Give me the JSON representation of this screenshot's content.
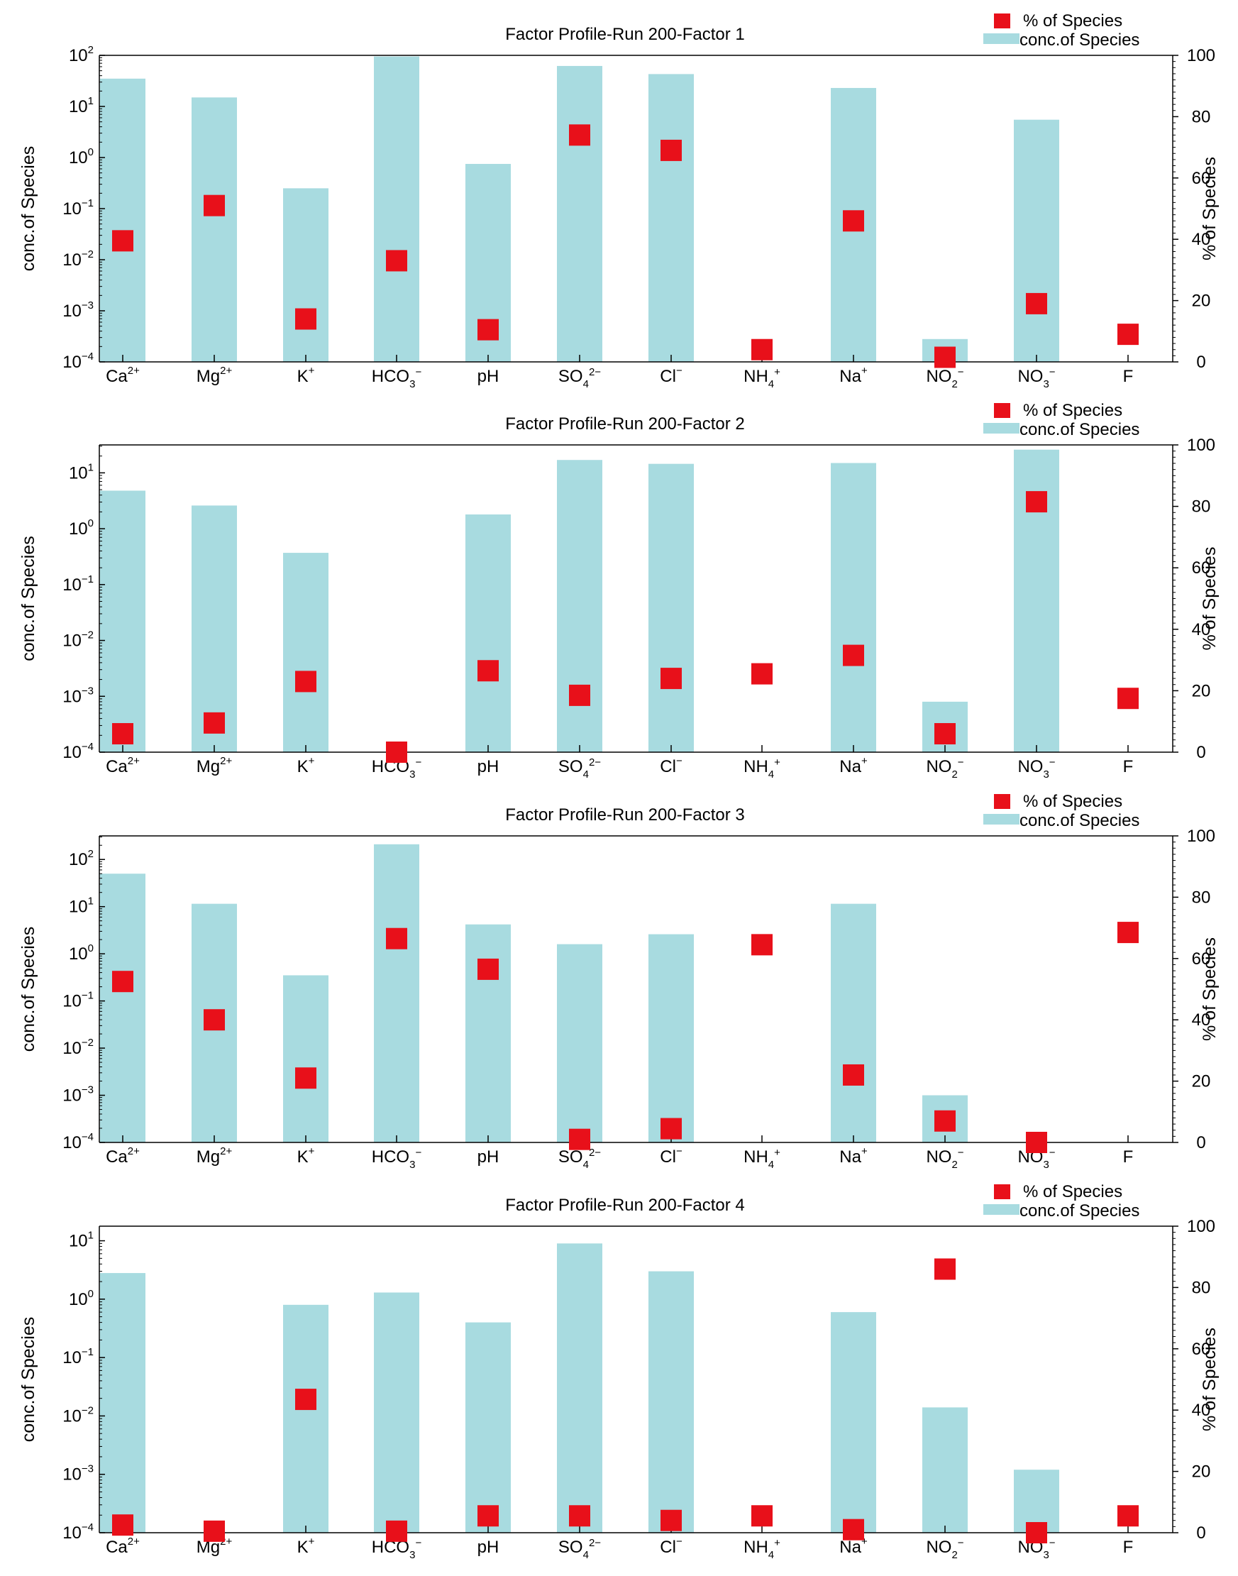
{
  "colors": {
    "bar": "#a8dbe0",
    "marker": "#e8101a",
    "axis": "#000000",
    "background": "#ffffff"
  },
  "legend": {
    "marker_label": "% of Species",
    "bar_label": "conc.of Species"
  },
  "categories": [
    {
      "base": "Ca",
      "sup": "2+",
      "sub": "",
      "sup2": ""
    },
    {
      "base": "Mg",
      "sup": "2+",
      "sub": "",
      "sup2": ""
    },
    {
      "base": "K",
      "sup": "+",
      "sub": "",
      "sup2": ""
    },
    {
      "base": "HCO",
      "sup": "",
      "sub": "3",
      "sup2": "−"
    },
    {
      "base": "pH",
      "sup": "",
      "sub": "",
      "sup2": ""
    },
    {
      "base": "SO",
      "sup": "",
      "sub": "4",
      "sup2": "2−"
    },
    {
      "base": "Cl",
      "sup": "−",
      "sub": "",
      "sup2": ""
    },
    {
      "base": "NH",
      "sup": "",
      "sub": "4",
      "sup2": "+"
    },
    {
      "base": "Na",
      "sup": "+",
      "sub": "",
      "sup2": ""
    },
    {
      "base": "NO",
      "sup": "",
      "sub": "2",
      "sup2": "−"
    },
    {
      "base": "NO",
      "sup": "",
      "sub": "3",
      "sup2": "−"
    },
    {
      "base": "F",
      "sup": "",
      "sub": "",
      "sup2": ""
    }
  ],
  "chart_data": [
    {
      "type": "bar",
      "title": "Factor Profile-Run 200-Factor 1",
      "ylabel": "conc.of Species",
      "y2label": "% of Species",
      "yscale": "log",
      "ylim_exp": [
        -4,
        2
      ],
      "y2lim": [
        0,
        100
      ],
      "y2ticks": [
        0,
        20,
        40,
        60,
        80,
        100
      ],
      "series": [
        {
          "name": "conc.of Species",
          "kind": "bar",
          "values": [
            35,
            15,
            0.25,
            95,
            0.75,
            62,
            43,
            0,
            23,
            0.00028,
            5.5,
            0
          ]
        },
        {
          "name": "% of Species",
          "kind": "marker",
          "values": [
            39.5,
            51,
            14,
            33,
            10.5,
            74,
            69,
            4,
            46,
            1.5,
            19,
            9
          ]
        }
      ]
    },
    {
      "type": "bar",
      "title": "Factor Profile-Run 200-Factor 2",
      "ylabel": "conc.of Species",
      "y2label": "% of Species",
      "yscale": "log",
      "ylim_exp": [
        -4,
        1.5
      ],
      "y2lim": [
        0,
        100
      ],
      "y2ticks": [
        0,
        20,
        40,
        60,
        80,
        100
      ],
      "series": [
        {
          "name": "conc.of Species",
          "kind": "bar",
          "values": [
            4.8,
            2.6,
            0.37,
            0,
            1.8,
            17,
            14.5,
            0,
            15,
            0.0008,
            26,
            0
          ]
        },
        {
          "name": "% of Species",
          "kind": "marker",
          "values": [
            6,
            9.5,
            23,
            0,
            26.5,
            18.5,
            24,
            25.5,
            31.5,
            6,
            81.5,
            17.5
          ]
        }
      ]
    },
    {
      "type": "bar",
      "title": "Factor Profile-Run 200-Factor 3",
      "ylabel": "conc.of Species",
      "y2label": "% of Species",
      "yscale": "log",
      "ylim_exp": [
        -4,
        2.5
      ],
      "y2lim": [
        0,
        100
      ],
      "y2ticks": [
        0,
        20,
        40,
        60,
        80,
        100
      ],
      "series": [
        {
          "name": "conc.of Species",
          "kind": "bar",
          "values": [
            50,
            11.5,
            0.35,
            210,
            4.2,
            1.6,
            2.6,
            0,
            11.5,
            0.001,
            0,
            0
          ]
        },
        {
          "name": "% of Species",
          "kind": "marker",
          "values": [
            52.5,
            40,
            21,
            66.5,
            56.5,
            1,
            4.5,
            64.5,
            22,
            7,
            0,
            68.5
          ]
        }
      ]
    },
    {
      "type": "bar",
      "title": "Factor Profile-Run 200-Factor 4",
      "ylabel": "conc.of Species",
      "y2label": "% of Species",
      "yscale": "log",
      "ylim_exp": [
        -4,
        1.25
      ],
      "y2lim": [
        0,
        100
      ],
      "y2ticks": [
        0,
        20,
        40,
        60,
        80,
        100
      ],
      "series": [
        {
          "name": "conc.of Species",
          "kind": "bar",
          "values": [
            2.8,
            0,
            0.8,
            1.3,
            0.4,
            9,
            3,
            0,
            0.6,
            0.014,
            0.0012,
            0
          ]
        },
        {
          "name": "% of Species",
          "kind": "marker",
          "values": [
            2.5,
            0.5,
            43.5,
            0.5,
            5.5,
            5.5,
            4,
            5.5,
            1,
            86,
            0,
            5.5
          ]
        }
      ]
    }
  ]
}
